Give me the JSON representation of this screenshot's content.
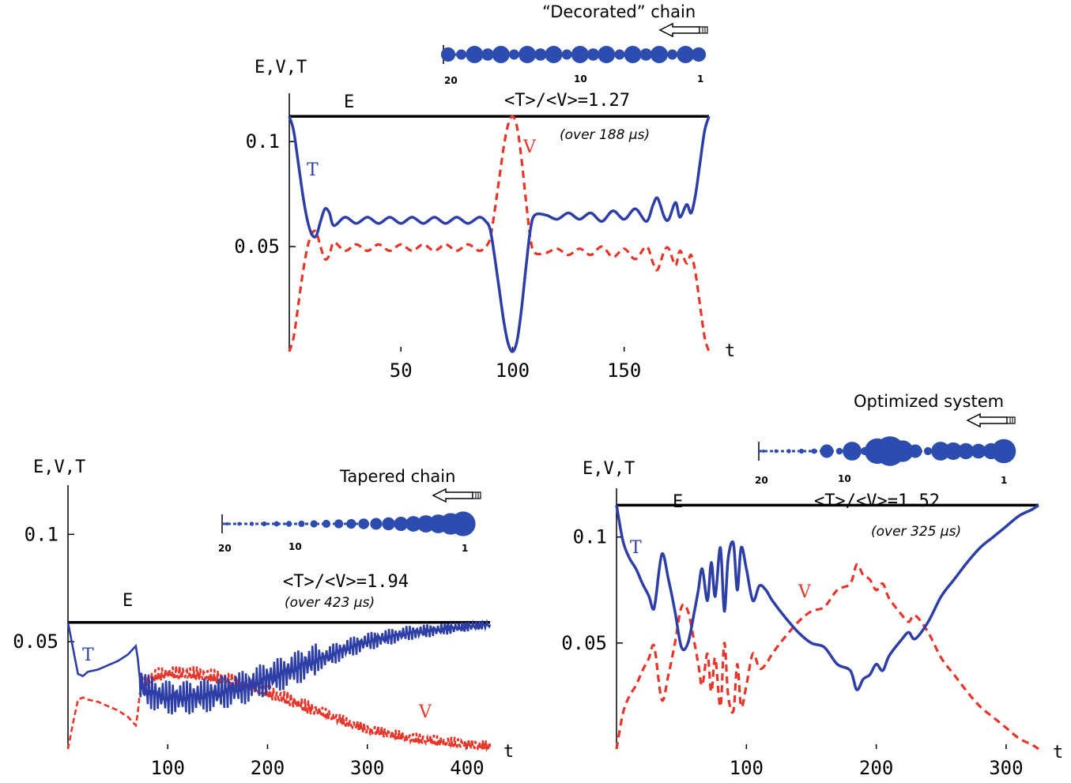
{
  "colors": {
    "T": "#2d3fa6",
    "V": "#e8352a",
    "E": "#000000",
    "bead": "#2d4cb0"
  },
  "chart_data": [
    {
      "id": "decorated",
      "type": "line",
      "chain_title": "“Decorated” chain",
      "ratio_text": "<T>/<V>=1.27",
      "over_text": "(over 188 μs)",
      "ylabel": "E,V,T",
      "xlabel": "t",
      "E_label": "E",
      "T_label": "T",
      "V_label": "V",
      "xlim": [
        0,
        188
      ],
      "ylim": [
        0,
        0.12
      ],
      "xticks": [
        {
          "v": 50,
          "label": "50"
        },
        {
          "v": 100,
          "label": "100"
        },
        {
          "v": 150,
          "label": "150"
        }
      ],
      "yticks": [
        {
          "v": 0.1,
          "label": "0.1"
        },
        {
          "v": 0.05,
          "label": "0.05"
        }
      ],
      "E": 0.112,
      "chain": {
        "numbers": [
          "20",
          "10",
          "1"
        ],
        "beads": [
          0.7,
          0.5,
          0.85,
          0.6,
          0.85,
          0.5,
          0.85,
          0.6,
          0.85,
          0.5,
          0.85,
          0.6,
          0.85,
          0.5,
          0.85,
          0.6,
          0.85,
          0.5,
          0.85,
          0.7
        ]
      },
      "series": [
        {
          "name": "T",
          "x": [
            0,
            2,
            4,
            6,
            8,
            10,
            12,
            14,
            16,
            18,
            20,
            25,
            30,
            35,
            40,
            45,
            50,
            55,
            60,
            65,
            70,
            75,
            80,
            85,
            88,
            90,
            92,
            94,
            96,
            98,
            100,
            102,
            104,
            106,
            108,
            110,
            115,
            120,
            125,
            130,
            135,
            140,
            145,
            150,
            155,
            160,
            163,
            165,
            168,
            170,
            173,
            175,
            178,
            180,
            182,
            184,
            186,
            188
          ],
          "y": [
            0.112,
            0.105,
            0.09,
            0.075,
            0.063,
            0.056,
            0.055,
            0.062,
            0.068,
            0.066,
            0.06,
            0.064,
            0.061,
            0.064,
            0.061,
            0.064,
            0.061,
            0.064,
            0.061,
            0.064,
            0.061,
            0.064,
            0.061,
            0.064,
            0.062,
            0.058,
            0.045,
            0.03,
            0.015,
            0.004,
            0,
            0.005,
            0.02,
            0.04,
            0.058,
            0.065,
            0.065,
            0.063,
            0.066,
            0.063,
            0.066,
            0.062,
            0.067,
            0.063,
            0.068,
            0.062,
            0.07,
            0.073,
            0.064,
            0.063,
            0.071,
            0.064,
            0.07,
            0.066,
            0.075,
            0.09,
            0.105,
            0.112
          ]
        },
        {
          "name": "V",
          "x": [
            0,
            2,
            4,
            6,
            8,
            10,
            12,
            14,
            16,
            18,
            20,
            25,
            30,
            35,
            40,
            45,
            50,
            55,
            60,
            65,
            70,
            75,
            80,
            85,
            88,
            90,
            92,
            94,
            96,
            98,
            100,
            102,
            104,
            106,
            108,
            110,
            115,
            120,
            125,
            130,
            135,
            140,
            145,
            150,
            155,
            160,
            163,
            165,
            168,
            170,
            173,
            175,
            178,
            180,
            182,
            184,
            186,
            188
          ],
          "y": [
            0,
            0.007,
            0.022,
            0.037,
            0.049,
            0.056,
            0.057,
            0.05,
            0.044,
            0.046,
            0.052,
            0.048,
            0.051,
            0.048,
            0.051,
            0.048,
            0.051,
            0.048,
            0.051,
            0.048,
            0.051,
            0.048,
            0.051,
            0.048,
            0.05,
            0.054,
            0.067,
            0.082,
            0.097,
            0.108,
            0.112,
            0.107,
            0.092,
            0.072,
            0.054,
            0.047,
            0.047,
            0.049,
            0.046,
            0.049,
            0.046,
            0.05,
            0.045,
            0.049,
            0.044,
            0.05,
            0.042,
            0.039,
            0.048,
            0.049,
            0.041,
            0.048,
            0.042,
            0.046,
            0.037,
            0.022,
            0.007,
            0
          ]
        }
      ]
    },
    {
      "id": "tapered",
      "type": "line",
      "chain_title": "Tapered chain",
      "ratio_text": "<T>/<V>=1.94",
      "over_text": "(over 423 μs)",
      "ylabel": "E,V,T",
      "xlabel": "t",
      "E_label": "E",
      "T_label": "T",
      "V_label": "V",
      "xlim": [
        0,
        423
      ],
      "ylim": [
        0,
        0.12
      ],
      "xticks": [
        {
          "v": 100,
          "label": "100"
        },
        {
          "v": 200,
          "label": "200"
        },
        {
          "v": 300,
          "label": "300"
        },
        {
          "v": 400,
          "label": "400"
        }
      ],
      "yticks": [
        {
          "v": 0.1,
          "label": "0.1"
        },
        {
          "v": 0.05,
          "label": "0.05"
        }
      ],
      "E": 0.059,
      "chain": {
        "numbers": [
          "20",
          "10",
          "1"
        ],
        "beads": [
          0.12,
          0.14,
          0.16,
          0.18,
          0.2,
          0.22,
          0.24,
          0.27,
          0.3,
          0.33,
          0.36,
          0.4,
          0.44,
          0.48,
          0.53,
          0.58,
          0.64,
          0.7,
          0.8,
          0.92
        ]
      },
      "series": [
        {
          "name": "T",
          "x": [
            0,
            5,
            10,
            15,
            20,
            30,
            40,
            50,
            60,
            68,
            70,
            72,
            75,
            80,
            90,
            100,
            120,
            140,
            160,
            180,
            200,
            220,
            240,
            260,
            280,
            300,
            320,
            340,
            360,
            380,
            400,
            423
          ],
          "y": [
            0.059,
            0.047,
            0.035,
            0.034,
            0.036,
            0.037,
            0.039,
            0.041,
            0.044,
            0.048,
            0.042,
            0.033,
            0.029,
            0.027,
            0.025,
            0.024,
            0.024,
            0.025,
            0.027,
            0.029,
            0.033,
            0.036,
            0.04,
            0.043,
            0.047,
            0.05,
            0.052,
            0.054,
            0.055,
            0.056,
            0.057,
            0.058
          ]
        },
        {
          "name": "V",
          "x": [
            0,
            5,
            10,
            15,
            20,
            30,
            40,
            50,
            60,
            68,
            70,
            72,
            75,
            80,
            90,
            100,
            120,
            140,
            160,
            180,
            200,
            220,
            240,
            260,
            280,
            300,
            320,
            340,
            360,
            380,
            400,
            423
          ],
          "y": [
            0,
            0.012,
            0.023,
            0.024,
            0.023,
            0.022,
            0.02,
            0.018,
            0.015,
            0.011,
            0.017,
            0.026,
            0.03,
            0.032,
            0.034,
            0.035,
            0.035,
            0.034,
            0.032,
            0.03,
            0.026,
            0.023,
            0.019,
            0.016,
            0.012,
            0.009,
            0.007,
            0.005,
            0.004,
            0.003,
            0.002,
            0.001
          ]
        }
      ]
    },
    {
      "id": "optimized",
      "type": "line",
      "chain_title": "Optimized system",
      "ratio_text": "<T>/<V>=1.52",
      "over_text": "(over 325 μs)",
      "ylabel": "E,V,T",
      "xlabel": "t",
      "E_label": "E",
      "T_label": "T",
      "V_label": "V",
      "xlim": [
        0,
        325
      ],
      "ylim": [
        0,
        0.12
      ],
      "xticks": [
        {
          "v": 100,
          "label": "100"
        },
        {
          "v": 200,
          "label": "200"
        },
        {
          "v": 300,
          "label": "300"
        }
      ],
      "yticks": [
        {
          "v": 0.1,
          "label": "0.1"
        },
        {
          "v": 0.05,
          "label": "0.05"
        }
      ],
      "E": 0.115,
      "chain": {
        "numbers": [
          "20",
          "10",
          "1"
        ],
        "beads": [
          0.12,
          0.14,
          0.16,
          0.18,
          0.2,
          0.5,
          0.25,
          0.7,
          0.3,
          0.95,
          1.1,
          0.8,
          0.5,
          0.3,
          0.7,
          0.65,
          0.6,
          0.55,
          0.6,
          0.9
        ]
      },
      "series": [
        {
          "name": "T",
          "x": [
            0,
            5,
            10,
            15,
            20,
            25,
            28,
            30,
            35,
            40,
            45,
            50,
            55,
            60,
            63,
            66,
            70,
            73,
            76,
            80,
            83,
            86,
            90,
            93,
            96,
            100,
            105,
            110,
            115,
            120,
            130,
            140,
            150,
            160,
            170,
            180,
            185,
            190,
            195,
            200,
            205,
            210,
            220,
            225,
            230,
            240,
            250,
            260,
            270,
            280,
            290,
            300,
            310,
            320,
            325
          ],
          "y": [
            0.115,
            0.098,
            0.09,
            0.085,
            0.078,
            0.072,
            0.066,
            0.07,
            0.092,
            0.08,
            0.065,
            0.048,
            0.05,
            0.065,
            0.075,
            0.085,
            0.07,
            0.088,
            0.072,
            0.095,
            0.065,
            0.09,
            0.097,
            0.075,
            0.095,
            0.085,
            0.07,
            0.077,
            0.075,
            0.07,
            0.062,
            0.055,
            0.05,
            0.048,
            0.04,
            0.037,
            0.028,
            0.033,
            0.035,
            0.04,
            0.037,
            0.044,
            0.052,
            0.055,
            0.052,
            0.06,
            0.072,
            0.08,
            0.088,
            0.095,
            0.1,
            0.105,
            0.11,
            0.113,
            0.115
          ]
        },
        {
          "name": "V",
          "x": [
            0,
            5,
            10,
            15,
            20,
            25,
            28,
            30,
            35,
            40,
            45,
            50,
            55,
            60,
            63,
            66,
            70,
            73,
            76,
            80,
            83,
            86,
            90,
            93,
            96,
            100,
            105,
            110,
            115,
            120,
            130,
            140,
            150,
            160,
            170,
            180,
            185,
            190,
            195,
            200,
            205,
            210,
            220,
            225,
            230,
            240,
            250,
            260,
            270,
            280,
            290,
            300,
            310,
            320,
            325
          ],
          "y": [
            0,
            0.017,
            0.025,
            0.03,
            0.037,
            0.043,
            0.049,
            0.045,
            0.023,
            0.035,
            0.05,
            0.067,
            0.065,
            0.05,
            0.04,
            0.03,
            0.045,
            0.027,
            0.043,
            0.02,
            0.05,
            0.025,
            0.018,
            0.04,
            0.02,
            0.03,
            0.045,
            0.038,
            0.04,
            0.045,
            0.053,
            0.06,
            0.065,
            0.067,
            0.075,
            0.078,
            0.087,
            0.082,
            0.08,
            0.075,
            0.078,
            0.071,
            0.063,
            0.06,
            0.063,
            0.055,
            0.043,
            0.035,
            0.027,
            0.02,
            0.015,
            0.01,
            0.005,
            0.002,
            0
          ]
        }
      ]
    }
  ]
}
